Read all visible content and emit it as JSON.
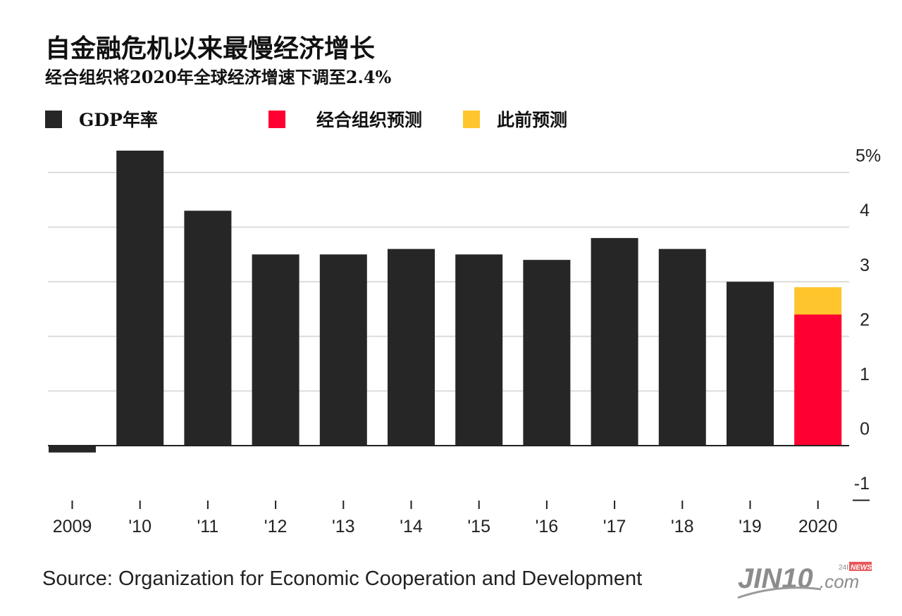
{
  "header": {
    "title": "自金融危机以来最慢经济增长",
    "subtitle": "经合组织将2020年全球经济增速下调至2.4%"
  },
  "legend": [
    {
      "label": "GDP年率",
      "color": "#262626"
    },
    {
      "label": "经合组织预测",
      "color": "#ff0033"
    },
    {
      "label": "此前预测",
      "color": "#ffc52c"
    }
  ],
  "footer": {
    "source": "Source: Organization for Economic Cooperation and Development",
    "logo_text": "JIN10.com",
    "logo_badge": "NEWS",
    "logo_24": "24I"
  },
  "chart_data": {
    "type": "bar",
    "title": "自金融危机以来最慢经济增长",
    "subtitle": "经合组织将2020年全球经济增速下调至2.4%",
    "xlabel": "",
    "ylabel": "",
    "categories": [
      "2009",
      "'10",
      "'11",
      "'12",
      "'13",
      "'14",
      "'15",
      "'16",
      "'17",
      "'18",
      "'19",
      "2020"
    ],
    "series": [
      {
        "name": "GDP年率",
        "color": "#262626",
        "values": [
          -0.1,
          5.4,
          4.3,
          3.5,
          3.5,
          3.6,
          3.5,
          3.4,
          3.8,
          3.6,
          3.0,
          null
        ]
      },
      {
        "name": "经合组织预测",
        "color": "#ff0033",
        "values": [
          null,
          null,
          null,
          null,
          null,
          null,
          null,
          null,
          null,
          null,
          null,
          2.4
        ]
      },
      {
        "name": "此前预测",
        "color": "#ffc52c",
        "values": [
          null,
          null,
          null,
          null,
          null,
          null,
          null,
          null,
          null,
          null,
          null,
          2.9
        ]
      }
    ],
    "ylim": [
      -1,
      5
    ],
    "yticks": [
      5,
      4,
      3,
      2,
      1,
      0,
      -1
    ],
    "ytick_labels": [
      "5%",
      "4",
      "3",
      "2",
      "1",
      "0",
      "-1"
    ],
    "y_axis_position": "right",
    "grid": true,
    "legend_position": "top-left"
  }
}
